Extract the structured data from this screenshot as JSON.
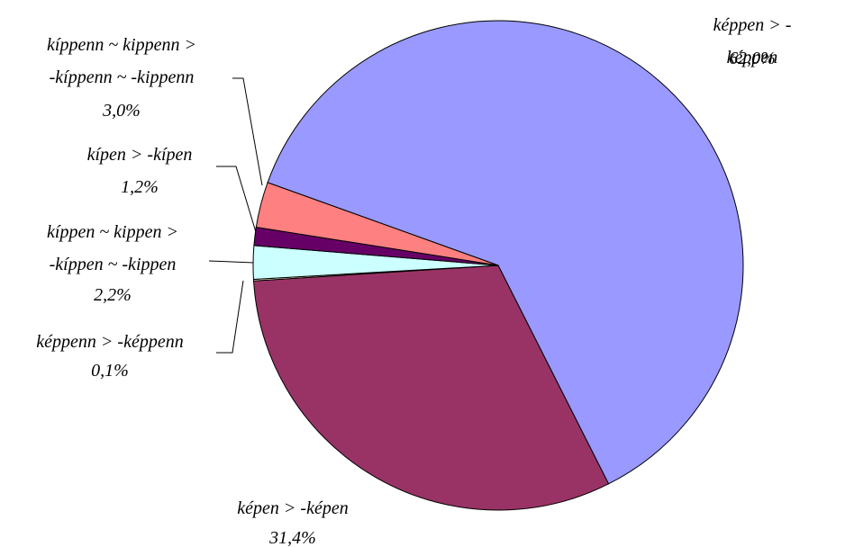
{
  "chart_data": {
    "type": "pie",
    "categories": [
      "képpen > -képpen",
      "képen > -képen",
      "képpenn > -képpenn",
      "kíppen ~ kippen >\n-kíppen ~ -kippen",
      "kípen > -kípen",
      "kíppenn ~ kippenn >\n-kíppenn ~ -kippenn"
    ],
    "values": [
      62.0,
      31.4,
      0.1,
      2.2,
      1.2,
      3.0
    ],
    "value_labels": [
      "62,0%",
      "31,4%",
      "0,1%",
      "2,2%",
      "1,2%",
      "3,0%"
    ],
    "colors": [
      "#9999ff",
      "#993366",
      "#ffffcc",
      "#ccffff",
      "#660066",
      "#ff8080"
    ]
  }
}
